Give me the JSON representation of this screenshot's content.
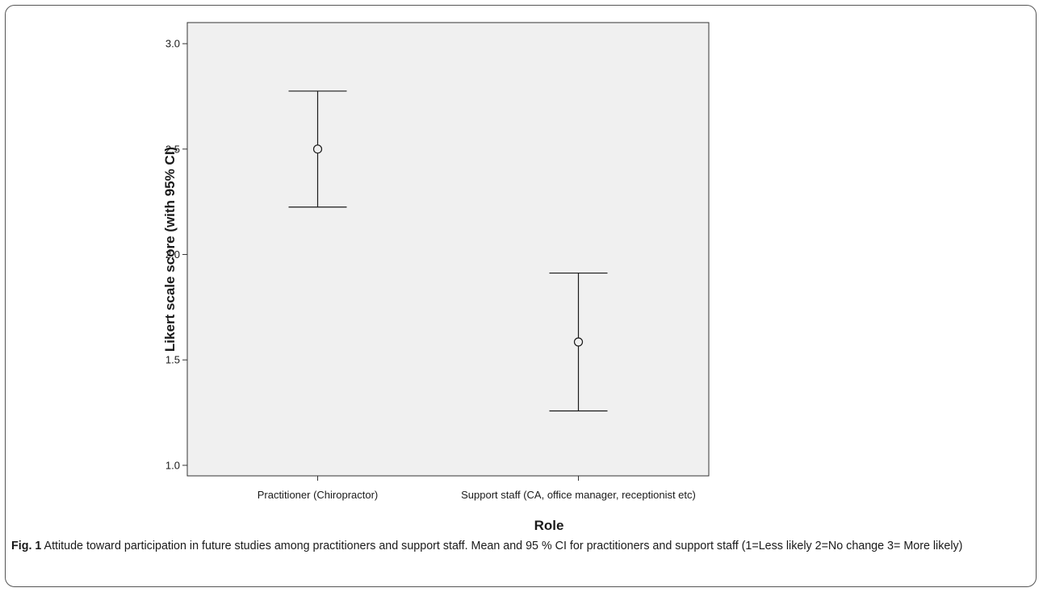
{
  "chart_data": {
    "type": "errorbar",
    "categories": [
      "Practitioner (Chiropractor)",
      "Support staff (CA, office manager, receptionist etc)"
    ],
    "means": [
      2.5,
      1.585
    ],
    "ci_lower": [
      2.225,
      1.258
    ],
    "ci_upper": [
      2.775,
      1.912
    ],
    "ylim": [
      0.95,
      3.1
    ],
    "yticks": [
      "1.0",
      "1.5",
      "2.0",
      "2.5",
      "3.0"
    ],
    "ylabel": "Likert scale score (with 95% CI)",
    "xlabel": "Role",
    "grid": false
  },
  "caption": {
    "label": "Fig. 1",
    "text": " Attitude toward participation in future studies among practitioners and support staff. Mean and 95 % CI for practitioners and support staff (1=Less likely 2=No change 3= More likely)"
  }
}
